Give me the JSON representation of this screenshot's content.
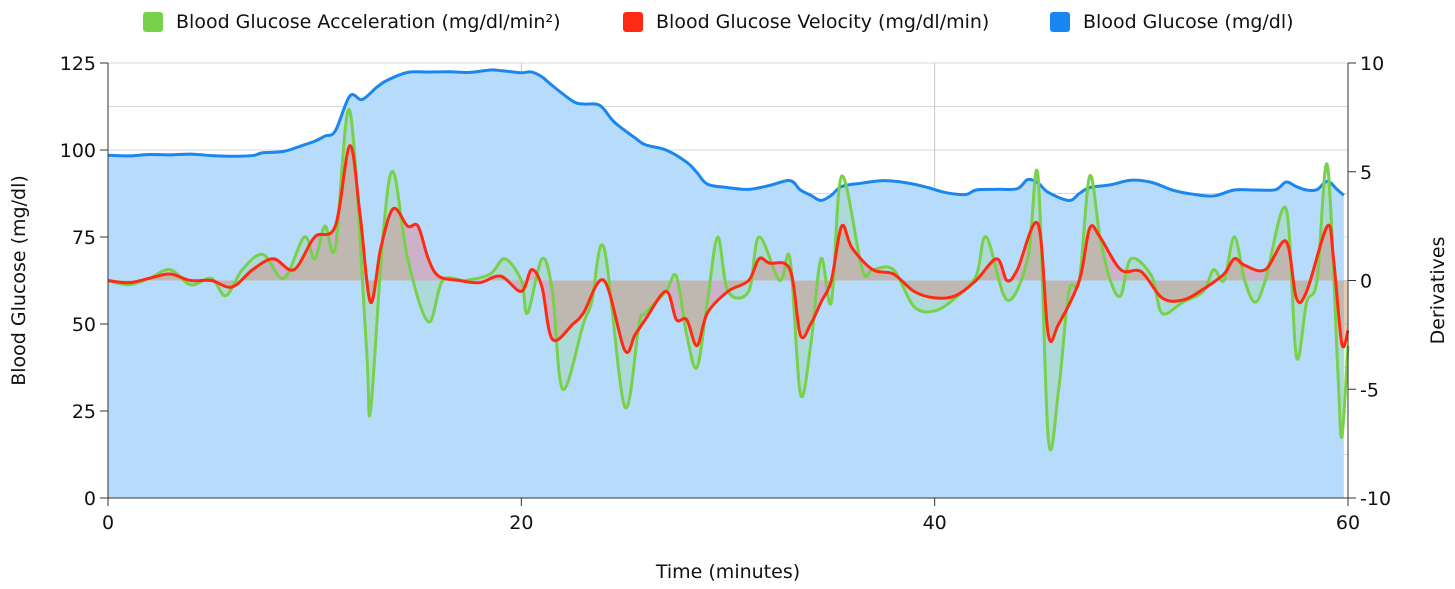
{
  "chart_data": {
    "type": "area",
    "xlabel": "Time (minutes)",
    "ylabel": "Blood Glucose (mg/dl)",
    "y2label": "Derivatives",
    "xlim": [
      0,
      60
    ],
    "ylim": [
      0,
      125
    ],
    "y2lim": [
      -10,
      10
    ],
    "x_ticks": [
      0,
      20,
      40,
      60
    ],
    "y_ticks": [
      0,
      25,
      50,
      75,
      100,
      125
    ],
    "y2_ticks": [
      -10,
      -5,
      0,
      5,
      10
    ],
    "grid": true,
    "legend_position": "top",
    "series": [
      {
        "name": "Blood Glucose Acceleration (mg/dl/min²)",
        "axis": "right",
        "color": "#77d14a",
        "points": [
          [
            0,
            0
          ],
          [
            1,
            -0.2
          ],
          [
            2,
            0.1
          ],
          [
            3,
            0.5
          ],
          [
            4,
            -0.2
          ],
          [
            5,
            0.1
          ],
          [
            5.7,
            -0.7
          ],
          [
            6.5,
            0.5
          ],
          [
            7.5,
            1.2
          ],
          [
            8.5,
            0.1
          ],
          [
            9.5,
            2
          ],
          [
            10,
            1
          ],
          [
            10.5,
            2.5
          ],
          [
            11,
            1.5
          ],
          [
            11.7,
            7.8
          ],
          [
            12.5,
            -3
          ],
          [
            12.7,
            -6
          ],
          [
            13.3,
            2
          ],
          [
            13.8,
            5
          ],
          [
            14.5,
            1
          ],
          [
            15.5,
            -1.9
          ],
          [
            16.2,
            0
          ],
          [
            17.3,
            0
          ],
          [
            18.5,
            0.3
          ],
          [
            19.2,
            1
          ],
          [
            20,
            0
          ],
          [
            20.3,
            -1.5
          ],
          [
            21,
            1
          ],
          [
            21.5,
            -0.5
          ],
          [
            22,
            -5
          ],
          [
            23,
            -2
          ],
          [
            23.4,
            -1
          ],
          [
            24,
            1.5
          ],
          [
            25,
            -5.8
          ],
          [
            25.7,
            -2
          ],
          [
            26,
            -1.5
          ],
          [
            27,
            -0.5
          ],
          [
            27.5,
            0.2
          ],
          [
            28,
            -2.5
          ],
          [
            28.5,
            -4
          ],
          [
            29,
            -1
          ],
          [
            29.5,
            2
          ],
          [
            30,
            -0.5
          ],
          [
            31,
            -0.5
          ],
          [
            31.5,
            2
          ],
          [
            32.5,
            0
          ],
          [
            33,
            1
          ],
          [
            33.5,
            -5.2
          ],
          [
            34,
            -3
          ],
          [
            34.5,
            1
          ],
          [
            35,
            -1
          ],
          [
            35.5,
            4.8
          ],
          [
            36.5,
            0.5
          ],
          [
            37,
            0.5
          ],
          [
            38,
            0.5
          ],
          [
            39,
            -1.2
          ],
          [
            40,
            -1.4
          ],
          [
            41,
            -0.8
          ],
          [
            42,
            0.2
          ],
          [
            42.5,
            2
          ],
          [
            43.5,
            -0.9
          ],
          [
            44.5,
            1
          ],
          [
            45,
            4.8
          ],
          [
            45.5,
            -7.3
          ],
          [
            46,
            -5
          ],
          [
            46.5,
            -0.5
          ],
          [
            47,
            0
          ],
          [
            47.5,
            4.8
          ],
          [
            48,
            2
          ],
          [
            48.5,
            0
          ],
          [
            49,
            -0.7
          ],
          [
            49.5,
            1
          ],
          [
            50.5,
            0.2
          ],
          [
            51,
            -1.5
          ],
          [
            52,
            -1
          ],
          [
            53,
            -0.5
          ],
          [
            53.5,
            0.5
          ],
          [
            54,
            0
          ],
          [
            54.5,
            2
          ],
          [
            55,
            0
          ],
          [
            55.5,
            -1
          ],
          [
            56,
            0
          ],
          [
            57,
            3.3
          ],
          [
            57.5,
            -3.5
          ],
          [
            58,
            -1
          ],
          [
            58.5,
            0
          ],
          [
            59,
            5.3
          ],
          [
            59.5,
            -4
          ],
          [
            59.7,
            -7.2
          ],
          [
            60,
            -3
          ]
        ]
      },
      {
        "name": "Blood Glucose Velocity (mg/dl/min)",
        "axis": "right",
        "color": "#ff2a12",
        "points": [
          [
            0,
            0
          ],
          [
            1,
            -0.1
          ],
          [
            2,
            0.1
          ],
          [
            3,
            0.3
          ],
          [
            4,
            0
          ],
          [
            5,
            0
          ],
          [
            6,
            -0.3
          ],
          [
            7,
            0.5
          ],
          [
            8,
            1
          ],
          [
            9,
            0.5
          ],
          [
            10,
            2
          ],
          [
            11,
            2.5
          ],
          [
            11.7,
            6.2
          ],
          [
            12.2,
            3
          ],
          [
            12.7,
            -1
          ],
          [
            13.2,
            1.5
          ],
          [
            13.8,
            3.3
          ],
          [
            14.5,
            2.5
          ],
          [
            15,
            2.5
          ],
          [
            15.5,
            1
          ],
          [
            16,
            0.2
          ],
          [
            17,
            0
          ],
          [
            18,
            -0.1
          ],
          [
            19,
            0.2
          ],
          [
            20,
            -0.5
          ],
          [
            20.5,
            0.5
          ],
          [
            21,
            -0.3
          ],
          [
            21.5,
            -2.7
          ],
          [
            22.5,
            -2
          ],
          [
            23,
            -1.5
          ],
          [
            24,
            0
          ],
          [
            25,
            -3.2
          ],
          [
            25.5,
            -2.5
          ],
          [
            26,
            -1.8
          ],
          [
            27,
            -0.5
          ],
          [
            27.5,
            -1.8
          ],
          [
            28,
            -1.8
          ],
          [
            28.5,
            -3
          ],
          [
            29,
            -1.5
          ],
          [
            30,
            -0.5
          ],
          [
            31,
            0
          ],
          [
            31.5,
            1
          ],
          [
            32,
            0.8
          ],
          [
            33,
            0.5
          ],
          [
            33.5,
            -2.5
          ],
          [
            34,
            -2
          ],
          [
            34.5,
            -1
          ],
          [
            35,
            0
          ],
          [
            35.5,
            2.5
          ],
          [
            36,
            1.5
          ],
          [
            37,
            0.5
          ],
          [
            38,
            0.3
          ],
          [
            39,
            -0.5
          ],
          [
            40,
            -0.8
          ],
          [
            41,
            -0.7
          ],
          [
            42,
            0
          ],
          [
            43,
            1
          ],
          [
            43.5,
            0
          ],
          [
            44,
            0.5
          ],
          [
            45,
            2.6
          ],
          [
            45.5,
            -2.5
          ],
          [
            46,
            -2
          ],
          [
            47,
            0
          ],
          [
            47.5,
            2.4
          ],
          [
            48,
            2
          ],
          [
            49,
            0.5
          ],
          [
            50,
            0.4
          ],
          [
            51,
            -0.8
          ],
          [
            52,
            -0.9
          ],
          [
            53,
            -0.4
          ],
          [
            54,
            0.3
          ],
          [
            54.5,
            1
          ],
          [
            55,
            0.7
          ],
          [
            56,
            0.5
          ],
          [
            57,
            1.8
          ],
          [
            57.5,
            -0.8
          ],
          [
            58,
            -0.5
          ],
          [
            59,
            2.5
          ],
          [
            59.3,
            1
          ],
          [
            59.7,
            -2.9
          ],
          [
            60,
            -2.3
          ]
        ]
      },
      {
        "name": "Blood Glucose (mg/dl)",
        "axis": "left",
        "color": "#1a86f0",
        "points": [
          [
            0,
            98.5
          ],
          [
            1,
            98.3
          ],
          [
            2,
            98.7
          ],
          [
            3,
            98.6
          ],
          [
            4,
            98.8
          ],
          [
            5,
            98.4
          ],
          [
            6,
            98.2
          ],
          [
            7,
            98.4
          ],
          [
            7.5,
            99.2
          ],
          [
            8.5,
            99.6
          ],
          [
            9.5,
            101.5
          ],
          [
            10,
            102.5
          ],
          [
            10.5,
            104
          ],
          [
            11,
            105.5
          ],
          [
            11.7,
            115.5
          ],
          [
            12.3,
            114.5
          ],
          [
            13,
            118
          ],
          [
            13.5,
            120
          ],
          [
            14.5,
            122.3
          ],
          [
            15.5,
            122.4
          ],
          [
            16.5,
            122.5
          ],
          [
            17.5,
            122.3
          ],
          [
            18.5,
            123
          ],
          [
            19,
            122.8
          ],
          [
            19.5,
            122.5
          ],
          [
            20,
            122.2
          ],
          [
            20.5,
            122.4
          ],
          [
            21,
            121
          ],
          [
            21.5,
            118.5
          ],
          [
            22.5,
            114
          ],
          [
            23,
            113.2
          ],
          [
            23.8,
            112.8
          ],
          [
            24.5,
            108
          ],
          [
            25.5,
            103.5
          ],
          [
            26,
            101.5
          ],
          [
            27,
            100
          ],
          [
            28,
            96.5
          ],
          [
            28.5,
            93.5
          ],
          [
            29,
            90.2
          ],
          [
            30,
            89.2
          ],
          [
            31,
            88.7
          ],
          [
            32,
            89.8
          ],
          [
            33,
            91.2
          ],
          [
            33.5,
            88.5
          ],
          [
            34,
            87
          ],
          [
            34.5,
            85.5
          ],
          [
            35,
            87
          ],
          [
            35.5,
            89.5
          ],
          [
            36.5,
            90.5
          ],
          [
            37.5,
            91.2
          ],
          [
            38.5,
            90.7
          ],
          [
            39.5,
            89.5
          ],
          [
            40.5,
            87.8
          ],
          [
            41.5,
            87.2
          ],
          [
            42,
            88.5
          ],
          [
            43,
            88.7
          ],
          [
            44,
            88.9
          ],
          [
            44.5,
            91.5
          ],
          [
            45,
            90.5
          ],
          [
            45.5,
            87.8
          ],
          [
            46.5,
            85.5
          ],
          [
            47,
            87.5
          ],
          [
            47.5,
            89.2
          ],
          [
            48.5,
            90
          ],
          [
            49.5,
            91.3
          ],
          [
            50.5,
            90.7
          ],
          [
            51.5,
            88.5
          ],
          [
            52.5,
            87.3
          ],
          [
            53.5,
            86.8
          ],
          [
            54.5,
            88.5
          ],
          [
            55.5,
            88.5
          ],
          [
            56.5,
            88.6
          ],
          [
            57,
            90.8
          ],
          [
            57.5,
            89.5
          ],
          [
            58,
            88.5
          ],
          [
            58.5,
            88.6
          ],
          [
            59,
            91
          ],
          [
            59.5,
            88.5
          ],
          [
            59.8,
            87
          ]
        ]
      }
    ]
  }
}
